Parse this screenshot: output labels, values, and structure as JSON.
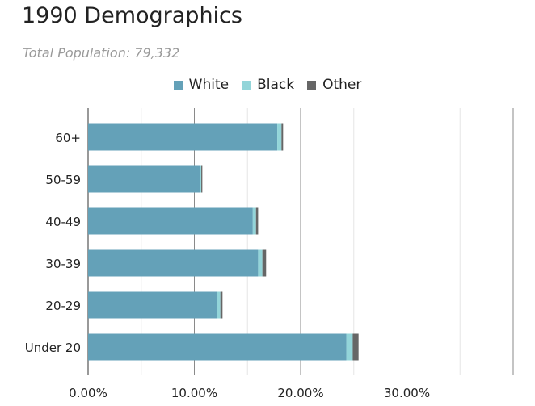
{
  "chart_data": {
    "type": "bar",
    "orientation": "horizontal",
    "stacked": true,
    "title": "1990 Demographics",
    "subtitle": "Total Population: 79,332",
    "categories": [
      "60+",
      "50-59",
      "40-49",
      "30-39",
      "20-29",
      "Under 20"
    ],
    "series": [
      {
        "name": "White",
        "color": "#64a1b8",
        "values": [
          17.8,
          10.5,
          15.5,
          16.0,
          12.1,
          24.3
        ]
      },
      {
        "name": "Black",
        "color": "#93d5d9",
        "values": [
          0.4,
          0.15,
          0.3,
          0.4,
          0.35,
          0.6
        ]
      },
      {
        "name": "Other",
        "color": "#666666",
        "values": [
          0.15,
          0.1,
          0.2,
          0.35,
          0.2,
          0.55
        ]
      }
    ],
    "x_ticks": [
      "0.00%",
      "10.00%",
      "20.00%",
      "30.00%"
    ],
    "x_tick_values": [
      0,
      10,
      20,
      30
    ],
    "xlim": [
      0,
      40
    ],
    "legend_position": "top-center",
    "grid": true
  }
}
